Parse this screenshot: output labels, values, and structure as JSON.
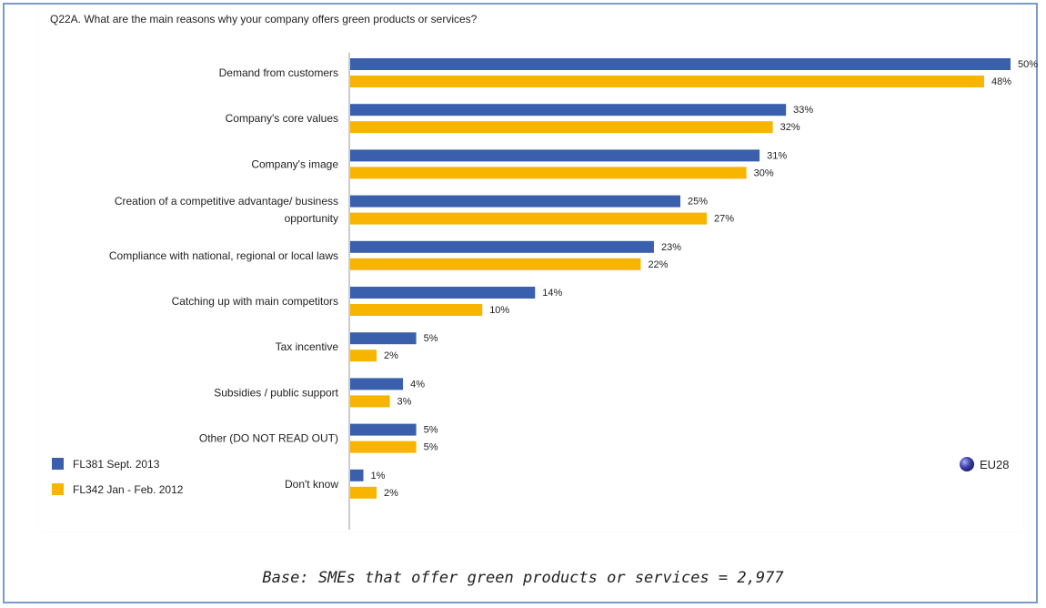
{
  "footnote": "Base: SMEs that offer green products or services = 2,977",
  "region_label": "EU28",
  "colors": {
    "series1": "#3a5fad",
    "series2": "#f7b500",
    "globe": "#3a3ea8",
    "border": "#7a9cc6"
  },
  "chart_data": {
    "type": "bar",
    "orientation": "horizontal",
    "title": "Q22A. What are the main reasons why your company offers green products or services?",
    "categories": [
      [
        "Demand from customers"
      ],
      [
        "Company's core values"
      ],
      [
        "Company's image"
      ],
      [
        "Creation of a competitive advantage/ business",
        "opportunity"
      ],
      [
        "Compliance with national, regional or local laws"
      ],
      [
        "Catching up with main competitors"
      ],
      [
        "Tax incentive"
      ],
      [
        "Subsidies / public support"
      ],
      [
        "Other (DO NOT READ OUT)"
      ],
      [
        "Don't know"
      ]
    ],
    "series": [
      {
        "name": "FL381 Sept. 2013",
        "values": [
          50,
          33,
          31,
          25,
          23,
          14,
          5,
          4,
          5,
          1
        ],
        "labels": [
          "50%",
          "33%",
          "31%",
          "25%",
          "23%",
          "14%",
          "5%",
          "4%",
          "5%",
          "1%"
        ]
      },
      {
        "name": "FL342 Jan - Feb. 2012",
        "values": [
          48,
          32,
          30,
          27,
          22,
          10,
          2,
          3,
          5,
          2
        ],
        "labels": [
          "48%",
          "32%",
          "30%",
          "27%",
          "22%",
          "10%",
          "2%",
          "3%",
          "5%",
          "2%"
        ]
      }
    ],
    "xlim": [
      0,
      50
    ],
    "grid": false,
    "legend": "bottom-left"
  }
}
